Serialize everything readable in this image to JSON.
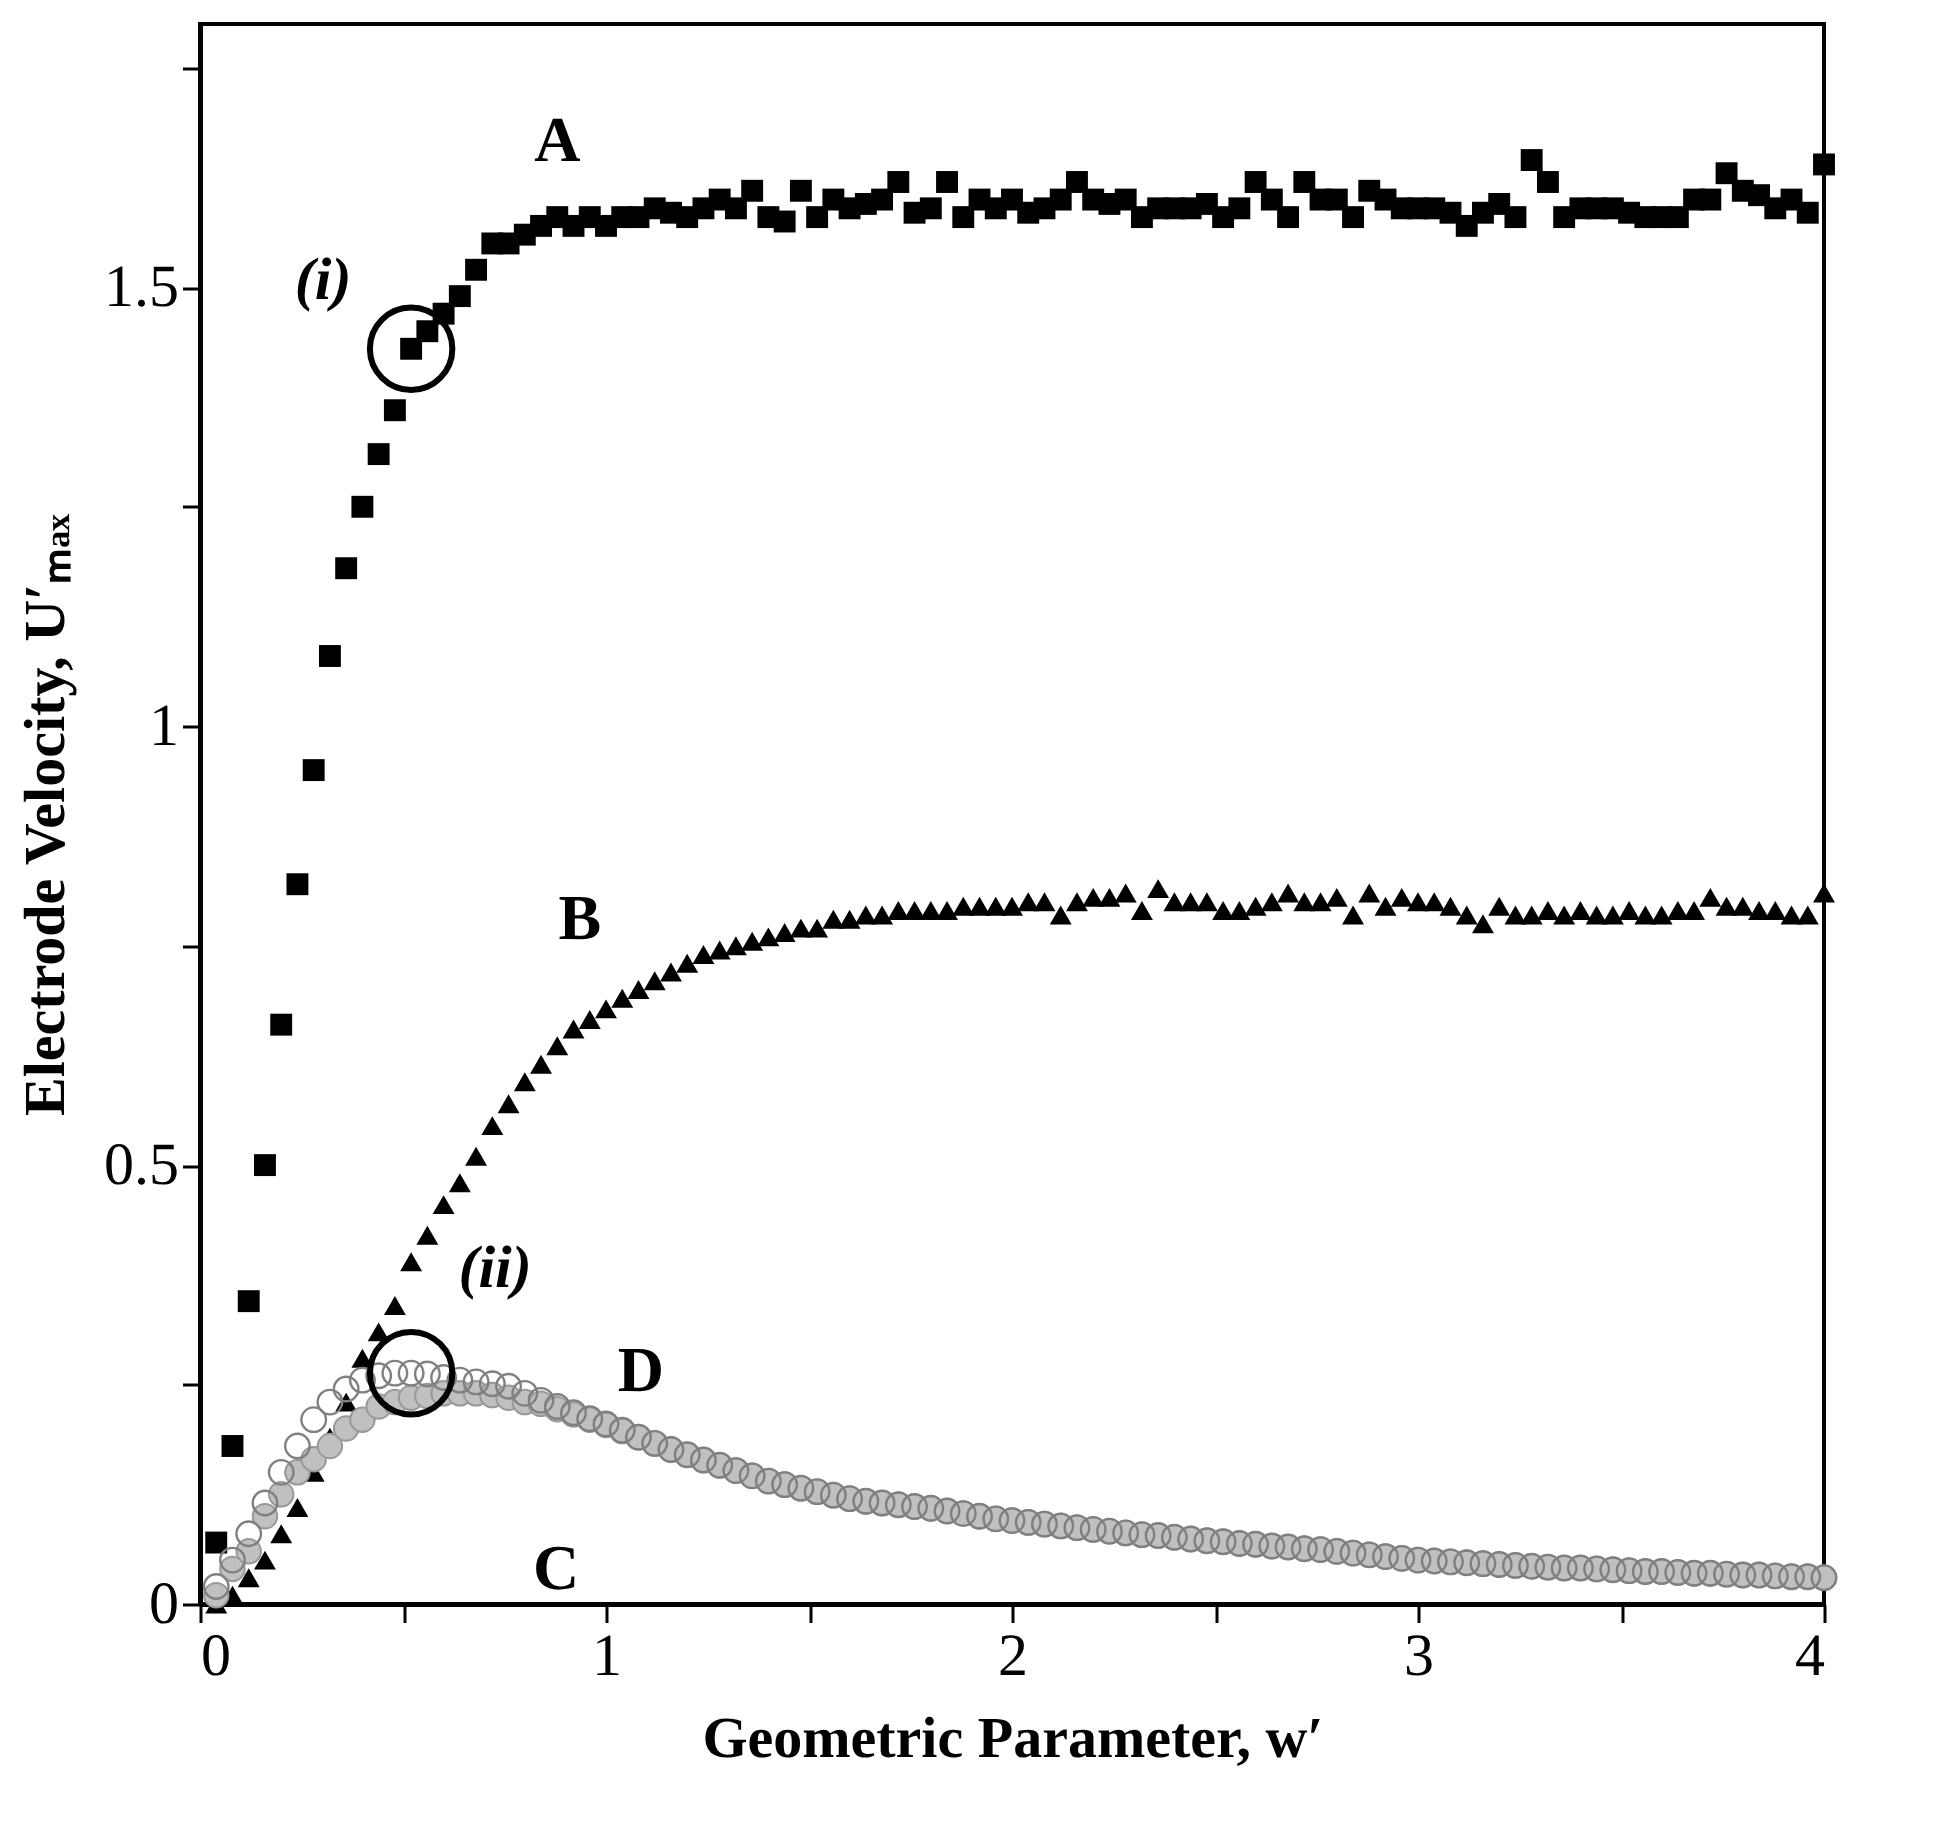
{
  "chart_data": {
    "type": "scatter",
    "xlabel": "Geometric Parameter, w′",
    "ylabel": "Electrode Velocity, U′ₘₐₓ",
    "xlim": [
      0,
      4
    ],
    "xticks": [
      0,
      {
        "value": 0.5,
        "label": null
      },
      1,
      {
        "value": 1.5,
        "label": null
      },
      2,
      {
        "value": 2.5,
        "label": null
      },
      3,
      {
        "value": 3.5,
        "label": null
      },
      4
    ],
    "ylim": [
      0,
      1.8
    ],
    "yticks": [
      0,
      {
        "value": 0.25,
        "label": null
      },
      0.5,
      {
        "value": 0.75,
        "label": null
      },
      1,
      {
        "value": 1.25,
        "label": null
      },
      1.5,
      {
        "value": 1.75,
        "label": null
      }
    ],
    "grid": false,
    "x": [
      0.04,
      0.08,
      0.12,
      0.16,
      0.2,
      0.24,
      0.28,
      0.32,
      0.36,
      0.4,
      0.44,
      0.48,
      0.52,
      0.56,
      0.6,
      0.64,
      0.68,
      0.72,
      0.76,
      0.8,
      0.84,
      0.88,
      0.92,
      0.96,
      1.0,
      1.04,
      1.08,
      1.12,
      1.16,
      1.2,
      1.24,
      1.28,
      1.32,
      1.36,
      1.4,
      1.44,
      1.48,
      1.52,
      1.56,
      1.6,
      1.64,
      1.68,
      1.72,
      1.76,
      1.8,
      1.84,
      1.88,
      1.92,
      1.96,
      2.0,
      2.04,
      2.08,
      2.12,
      2.16,
      2.2,
      2.24,
      2.28,
      2.32,
      2.36,
      2.4,
      2.44,
      2.48,
      2.52,
      2.56,
      2.6,
      2.64,
      2.68,
      2.72,
      2.76,
      2.8,
      2.84,
      2.88,
      2.92,
      2.96,
      3.0,
      3.04,
      3.08,
      3.12,
      3.16,
      3.2,
      3.24,
      3.28,
      3.32,
      3.36,
      3.4,
      3.44,
      3.48,
      3.52,
      3.56,
      3.6,
      3.64,
      3.68,
      3.72,
      3.76,
      3.8,
      3.84,
      3.88,
      3.92,
      3.96,
      4.0
    ],
    "series": [
      {
        "name": "A",
        "color": "#000000",
        "marker": "square",
        "values": [
          0.07,
          0.18,
          0.345,
          0.5,
          0.66,
          0.82,
          0.95,
          1.08,
          1.18,
          1.25,
          1.31,
          1.36,
          1.43,
          1.45,
          1.47,
          1.49,
          1.52,
          1.55,
          1.55,
          1.56,
          1.57,
          1.58,
          1.57,
          1.58,
          1.57,
          1.58,
          1.58,
          1.59,
          1.585,
          1.58,
          1.59,
          1.6,
          1.59,
          1.61,
          1.58,
          1.575,
          1.61,
          1.58,
          1.6,
          1.59,
          1.595,
          1.6,
          1.62,
          1.585,
          1.59,
          1.62,
          1.58,
          1.6,
          1.59,
          1.6,
          1.585,
          1.59,
          1.6,
          1.62,
          1.6,
          1.595,
          1.6,
          1.58,
          1.59,
          1.59,
          1.59,
          1.595,
          1.58,
          1.59,
          1.62,
          1.6,
          1.58,
          1.62,
          1.6,
          1.6,
          1.58,
          1.61,
          1.6,
          1.59,
          1.59,
          1.59,
          1.585,
          1.57,
          1.585,
          1.595,
          1.58,
          1.645,
          1.62,
          1.58,
          1.59,
          1.59,
          1.59,
          1.585,
          1.58,
          1.58,
          1.58,
          1.6,
          1.6,
          1.63,
          1.61,
          1.605,
          1.59,
          1.6,
          1.585,
          1.64
        ]
      },
      {
        "name": "B",
        "color": "#000000",
        "marker": "triangle",
        "values": [
          0.0,
          0.01,
          0.03,
          0.05,
          0.08,
          0.11,
          0.15,
          0.19,
          0.23,
          0.28,
          0.31,
          0.34,
          0.39,
          0.42,
          0.455,
          0.48,
          0.51,
          0.545,
          0.57,
          0.595,
          0.615,
          0.636,
          0.655,
          0.666,
          0.678,
          0.69,
          0.7,
          0.71,
          0.72,
          0.73,
          0.74,
          0.745,
          0.75,
          0.755,
          0.76,
          0.765,
          0.77,
          0.77,
          0.78,
          0.78,
          0.785,
          0.785,
          0.79,
          0.79,
          0.79,
          0.79,
          0.795,
          0.795,
          0.795,
          0.795,
          0.8,
          0.8,
          0.785,
          0.8,
          0.805,
          0.805,
          0.81,
          0.79,
          0.815,
          0.8,
          0.8,
          0.8,
          0.79,
          0.79,
          0.795,
          0.8,
          0.81,
          0.8,
          0.8,
          0.805,
          0.785,
          0.81,
          0.795,
          0.805,
          0.8,
          0.8,
          0.795,
          0.785,
          0.775,
          0.795,
          0.785,
          0.785,
          0.79,
          0.785,
          0.79,
          0.785,
          0.785,
          0.79,
          0.785,
          0.785,
          0.79,
          0.79,
          0.805,
          0.795,
          0.795,
          0.79,
          0.79,
          0.785,
          0.785,
          0.81
        ]
      },
      {
        "name": "C",
        "color": "#c0c0c0",
        "marker": "circle",
        "values": [
          0.01,
          0.04,
          0.06,
          0.1,
          0.125,
          0.15,
          0.165,
          0.18,
          0.2,
          0.21,
          0.225,
          0.23,
          0.235,
          0.237,
          0.24,
          0.24,
          0.24,
          0.238,
          0.235,
          0.23,
          0.228,
          0.222,
          0.216,
          0.21,
          0.204,
          0.197,
          0.19,
          0.183,
          0.176,
          0.17,
          0.164,
          0.158,
          0.152,
          0.146,
          0.14,
          0.136,
          0.132,
          0.128,
          0.124,
          0.12,
          0.117,
          0.115,
          0.113,
          0.111,
          0.109,
          0.106,
          0.103,
          0.1,
          0.097,
          0.095,
          0.093,
          0.091,
          0.089,
          0.087,
          0.085,
          0.083,
          0.081,
          0.079,
          0.078,
          0.076,
          0.074,
          0.072,
          0.071,
          0.069,
          0.068,
          0.066,
          0.065,
          0.063,
          0.062,
          0.06,
          0.058,
          0.056,
          0.054,
          0.052,
          0.05,
          0.049,
          0.048,
          0.047,
          0.046,
          0.045,
          0.044,
          0.043,
          0.042,
          0.041,
          0.041,
          0.04,
          0.039,
          0.038,
          0.037,
          0.037,
          0.036,
          0.035,
          0.035,
          0.034,
          0.033,
          0.033,
          0.032,
          0.031,
          0.031,
          0.03
        ]
      },
      {
        "name": "D",
        "color": "#808080",
        "marker": "circle",
        "values": [
          0.02,
          0.05,
          0.08,
          0.115,
          0.15,
          0.18,
          0.21,
          0.23,
          0.245,
          0.255,
          0.26,
          0.263,
          0.263,
          0.262,
          0.258,
          0.255,
          0.253,
          0.251,
          0.248,
          0.24,
          0.232,
          0.225,
          0.218,
          0.211,
          0.205,
          0.198,
          0.19,
          0.183,
          0.176,
          0.17,
          0.164,
          0.158,
          0.152,
          0.146,
          0.14,
          0.136,
          0.132,
          0.128,
          0.124,
          0.12,
          0.117,
          0.115,
          0.113,
          0.111,
          0.109,
          0.106,
          0.103,
          0.1,
          0.097,
          0.095,
          0.093,
          0.091,
          0.089,
          0.087,
          0.085,
          0.083,
          0.081,
          0.079,
          0.078,
          0.076,
          0.074,
          0.072,
          0.071,
          0.069,
          0.068,
          0.066,
          0.065,
          0.063,
          0.062,
          0.06,
          0.058,
          0.056,
          0.054,
          0.052,
          0.05,
          0.049,
          0.048,
          0.047,
          0.046,
          0.045,
          0.044,
          0.043,
          0.042,
          0.041,
          0.041,
          0.04,
          0.039,
          0.038,
          0.037,
          0.037,
          0.036,
          0.035,
          0.035,
          0.034,
          0.033,
          0.033,
          0.032,
          0.031,
          0.031,
          0.03
        ]
      }
    ],
    "annotations": [
      {
        "text": "(i)",
        "x": 0.52,
        "y": 1.43
      },
      {
        "text": "(ii)",
        "x": 0.52,
        "y": 0.263
      }
    ]
  }
}
